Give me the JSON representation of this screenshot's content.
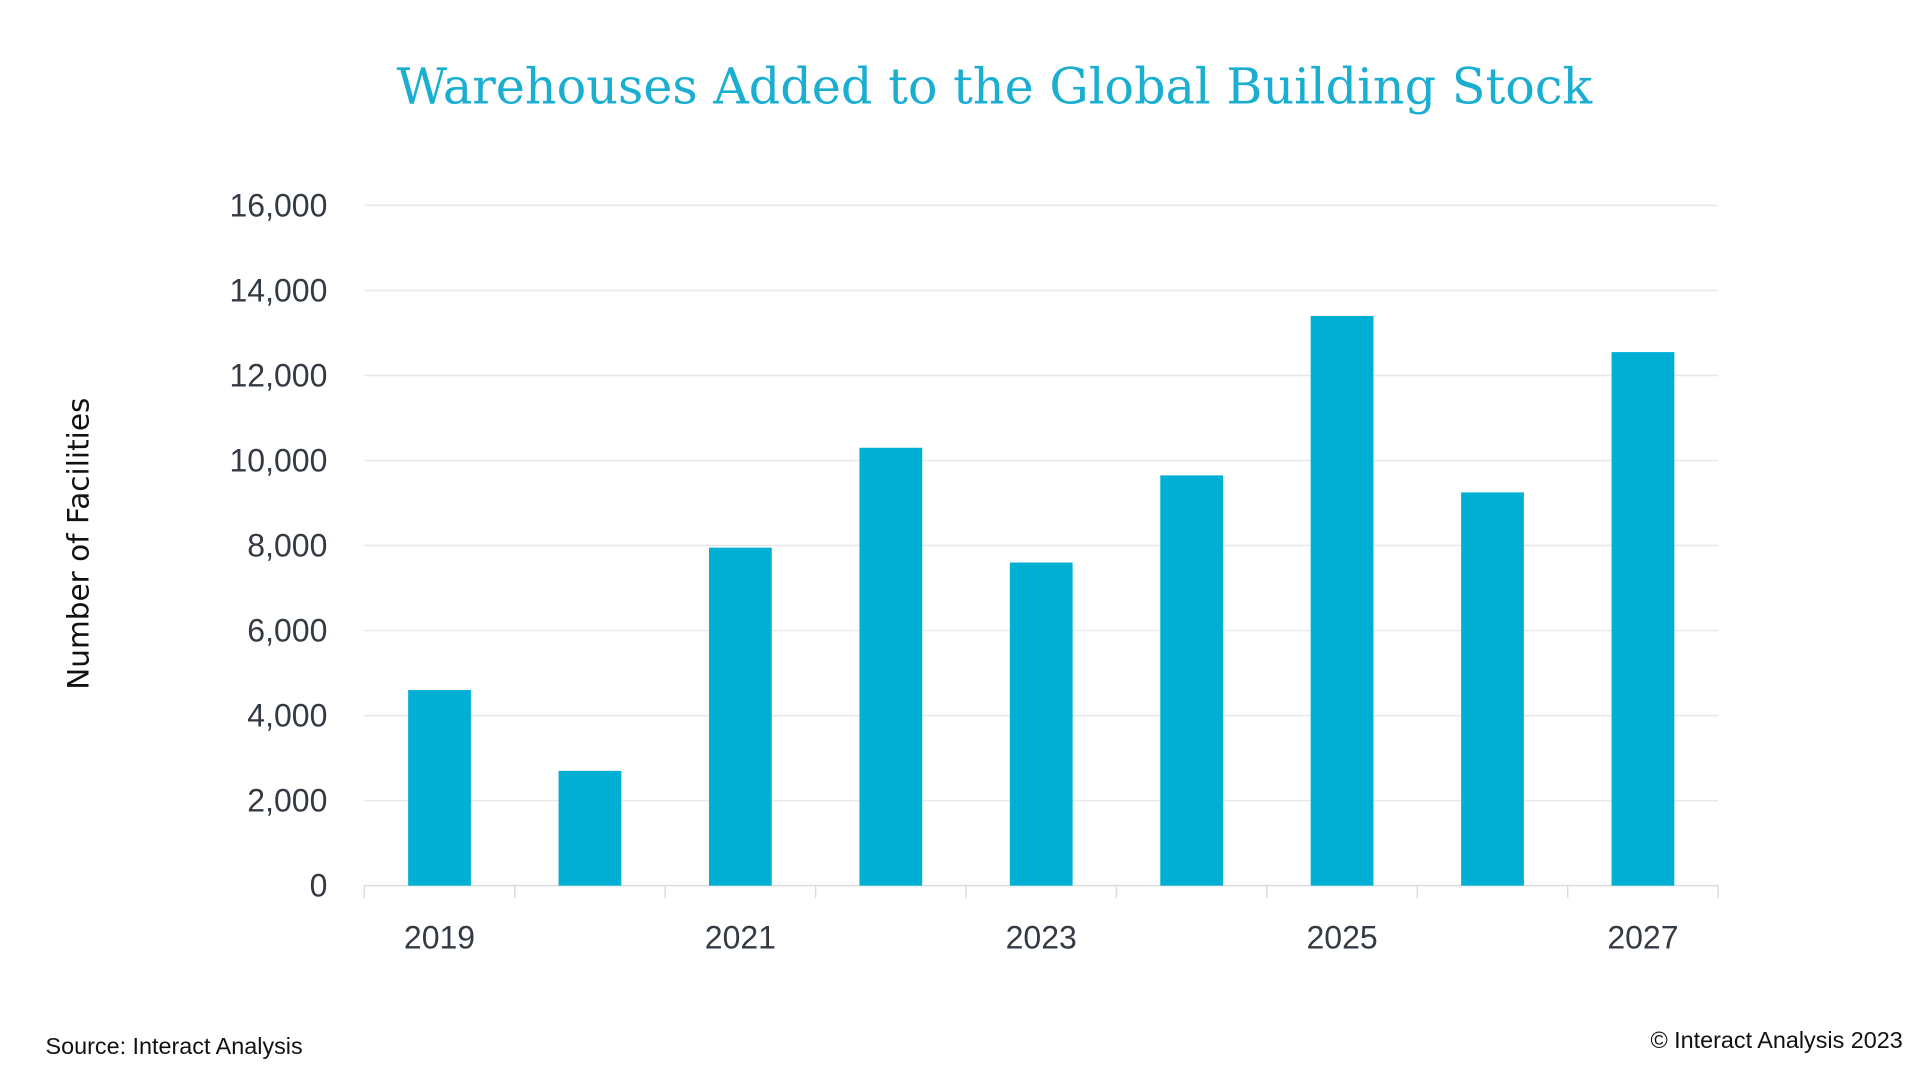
{
  "chart_data": {
    "type": "bar",
    "title": "Warehouses Added to the Global Building Stock",
    "xlabel": "",
    "ylabel": "Number of Facilities",
    "categories": [
      "2019",
      "2020",
      "2021",
      "2022",
      "2023",
      "2024",
      "2025",
      "2026",
      "2027"
    ],
    "x_tick_labels": [
      "2019",
      "",
      "2021",
      "",
      "2023",
      "",
      "2025",
      "",
      "2027"
    ],
    "values": [
      4600,
      2700,
      7950,
      10300,
      7600,
      9650,
      13400,
      9250,
      12550
    ],
    "ylim": [
      0,
      16000
    ],
    "y_ticks": [
      0,
      2000,
      4000,
      6000,
      8000,
      10000,
      12000,
      14000,
      16000
    ],
    "y_tick_labels": [
      "0",
      "2,000",
      "4,000",
      "6,000",
      "8,000",
      "10,000",
      "12,000",
      "14,000",
      "16,000"
    ],
    "grid": true,
    "legend": "none",
    "colors": {
      "bar": "#00b0d4",
      "title": "#1aaed1",
      "grid": "#e8e8e8"
    }
  },
  "footer": {
    "source": "Source: Interact Analysis",
    "copyright": "© Interact Analysis 2023"
  }
}
